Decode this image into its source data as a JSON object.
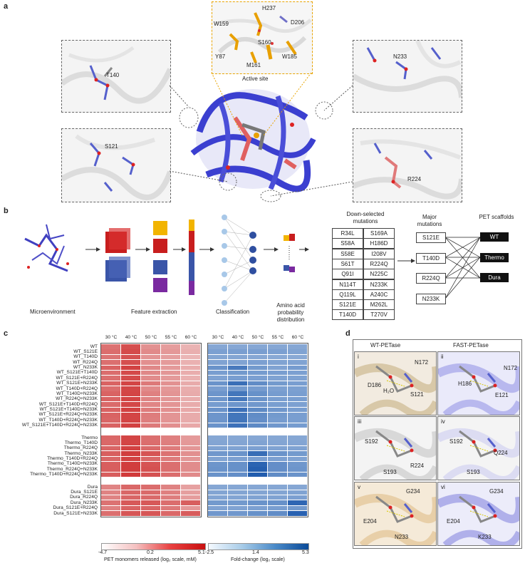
{
  "panel_labels": {
    "a": "a",
    "b": "b",
    "c": "c",
    "d": "d"
  },
  "panel_a": {
    "active_site_caption": "Active site",
    "active_site_residues": [
      "H237",
      "D206",
      "W159",
      "S160",
      "Y87",
      "W185",
      "M161"
    ],
    "inset_labels": {
      "t140": "T140",
      "s121": "S121",
      "n233": "N233",
      "r224": "R224"
    }
  },
  "panel_b": {
    "steps": [
      "Microenvironment",
      "Feature extraction",
      "Classification",
      "Amino acid probability distribution"
    ],
    "down_selected_title": "Down-selected mutations",
    "mutations_col1": [
      "R34L",
      "S58A",
      "S58E",
      "S61T",
      "Q91I",
      "N114T",
      "Q119L",
      "S121E",
      "T140D"
    ],
    "mutations_col2": [
      "S169A",
      "H186D",
      "I208V",
      "R224Q",
      "N225C",
      "N233K",
      "A240C",
      "M262L",
      "T270V"
    ],
    "major_title": "Major mutations",
    "major_mutations": [
      "S121E",
      "T140D",
      "R224Q",
      "N233K"
    ],
    "scaffold_title": "PET scaffolds",
    "scaffolds": [
      "WT",
      "Thermo",
      "Dura"
    ]
  },
  "panel_c": {
    "temperatures": [
      "30 °C",
      "40 °C",
      "50 °C",
      "55 °C",
      "60 °C"
    ],
    "groups": [
      {
        "name": "WT group",
        "rows": [
          "WT",
          "WT_S121E",
          "WT_T140D",
          "WT_R224Q",
          "WT_N233K",
          "WT_S121E+T140D",
          "WT_S121E+R224Q",
          "WT_S121E+N233K",
          "WT_T140D+R224Q",
          "WT_T140D+N233K",
          "WT_R224Q+N233K",
          "WT_S121E+T140D+R224Q",
          "WT_S121E+T140D+N233K",
          "WT_S121E+R224Q+N233K",
          "WT_T140D+R224Q+N233K",
          "WT_S121E+T140D+R224Q+N233K"
        ]
      },
      {
        "name": "Thermo group",
        "rows": [
          "Thermo",
          "Thermo_T140D",
          "Thermo_R224Q",
          "Thermo_N233K",
          "Thermo_T140D+R224Q",
          "Thermo_T140D+N233K",
          "Thermo_R224Q+N233K",
          "Thermo_T140D+R224Q+N233K"
        ]
      },
      {
        "name": "Dura group",
        "rows": [
          "Dura",
          "Dura_S121E",
          "Dura_R224Q",
          "Dura_N233K",
          "Dura_S121E+R224Q",
          "Dura_S121E+N233K"
        ]
      }
    ],
    "red_scale": {
      "ticks": [
        "-4.7",
        "0.2",
        "5.1"
      ],
      "label": "PET monomers released (log₂ scale, mM)",
      "min": -4.7,
      "max": 5.1
    },
    "blue_scale": {
      "ticks": [
        "-2.5",
        "1.4",
        "5.3"
      ],
      "label": "Fold-change (log₂ scale)",
      "min": -2.5,
      "max": 5.3
    },
    "red_values": [
      [
        2.2,
        3.6,
        0.9,
        0.4,
        -0.6
      ],
      [
        2.4,
        3.8,
        1.2,
        0.6,
        -0.4
      ],
      [
        2.1,
        3.5,
        0.8,
        0.3,
        -0.7
      ],
      [
        2.3,
        3.6,
        1.0,
        0.5,
        -0.5
      ],
      [
        2.8,
        4.1,
        1.3,
        0.5,
        -0.3
      ],
      [
        2.4,
        3.8,
        1.3,
        0.7,
        -0.3
      ],
      [
        2.3,
        3.7,
        1.1,
        0.5,
        -0.5
      ],
      [
        2.8,
        4.0,
        1.9,
        0.9,
        -0.2
      ],
      [
        2.4,
        3.9,
        1.2,
        0.6,
        -0.3
      ],
      [
        2.8,
        4.0,
        1.6,
        0.8,
        -0.2
      ],
      [
        2.8,
        4.0,
        1.5,
        0.7,
        -0.3
      ],
      [
        2.5,
        3.9,
        1.4,
        0.8,
        -0.2
      ],
      [
        2.8,
        4.1,
        1.8,
        1.0,
        -0.1
      ],
      [
        2.8,
        4.0,
        1.8,
        0.8,
        -0.2
      ],
      [
        2.7,
        4.0,
        1.7,
        0.8,
        -0.2
      ],
      [
        2.8,
        4.1,
        1.9,
        1.0,
        -0.1
      ],
      [
        2.6,
        4.0,
        2.3,
        1.6,
        0.5
      ],
      [
        2.6,
        4.0,
        2.4,
        1.7,
        0.6
      ],
      [
        2.7,
        4.1,
        2.5,
        1.8,
        0.7
      ],
      [
        3.0,
        4.3,
        3.4,
        2.2,
        1.0
      ],
      [
        2.7,
        4.1,
        2.6,
        1.8,
        0.7
      ],
      [
        3.0,
        4.3,
        3.4,
        2.3,
        1.1
      ],
      [
        3.0,
        4.3,
        3.5,
        2.3,
        1.1
      ],
      [
        3.0,
        4.4,
        3.5,
        2.4,
        1.2
      ],
      [
        1.4,
        2.6,
        2.4,
        1.5,
        0.2
      ],
      [
        1.5,
        2.7,
        2.5,
        1.6,
        0.3
      ],
      [
        1.5,
        2.7,
        2.5,
        1.7,
        0.4
      ],
      [
        2.2,
        3.2,
        3.2,
        2.4,
        3.0
      ],
      [
        1.6,
        2.8,
        2.7,
        1.9,
        0.6
      ],
      [
        2.3,
        3.3,
        3.3,
        2.6,
        3.1
      ]
    ],
    "blue_values": [
      [
        1.2,
        1.2,
        1.2,
        1.2,
        1.2
      ],
      [
        1.5,
        1.6,
        1.6,
        1.5,
        1.4
      ],
      [
        1.3,
        1.3,
        1.2,
        1.1,
        1.1
      ],
      [
        1.4,
        1.4,
        1.5,
        1.4,
        1.4
      ],
      [
        2.1,
        3.2,
        1.8,
        1.4,
        1.7
      ],
      [
        1.6,
        1.8,
        1.7,
        1.6,
        1.5
      ],
      [
        1.4,
        1.6,
        1.5,
        1.4,
        1.4
      ],
      [
        2.1,
        3.7,
        2.4,
        1.8,
        1.6
      ],
      [
        1.6,
        1.8,
        1.7,
        1.5,
        1.5
      ],
      [
        2.0,
        3.4,
        2.2,
        1.7,
        1.6
      ],
      [
        2.0,
        3.3,
        2.1,
        1.6,
        1.6
      ],
      [
        1.7,
        2.0,
        1.9,
        1.6,
        1.5
      ],
      [
        2.1,
        3.6,
        2.5,
        1.9,
        1.6
      ],
      [
        2.0,
        3.4,
        2.4,
        1.8,
        1.6
      ],
      [
        2.0,
        3.4,
        2.3,
        1.7,
        1.6
      ],
      [
        2.1,
        3.6,
        2.5,
        1.9,
        1.7
      ],
      [
        1.2,
        1.2,
        1.2,
        1.2,
        1.2
      ],
      [
        1.3,
        1.3,
        1.4,
        1.3,
        1.3
      ],
      [
        1.4,
        1.4,
        1.5,
        1.4,
        1.4
      ],
      [
        1.9,
        2.1,
        3.8,
        2.1,
        1.8
      ],
      [
        1.4,
        1.5,
        1.6,
        1.5,
        1.4
      ],
      [
        2.0,
        2.2,
        4.2,
        2.3,
        1.9
      ],
      [
        2.1,
        2.2,
        4.4,
        2.3,
        2.0
      ],
      [
        2.1,
        2.3,
        4.5,
        2.4,
        2.1
      ],
      [
        1.2,
        1.2,
        1.2,
        1.2,
        1.2
      ],
      [
        1.3,
        1.3,
        1.3,
        1.3,
        1.4
      ],
      [
        1.3,
        1.3,
        1.4,
        1.4,
        1.5
      ],
      [
        1.8,
        1.8,
        2.1,
        2.2,
        4.1
      ],
      [
        1.4,
        1.4,
        1.5,
        1.6,
        1.8
      ],
      [
        1.9,
        1.9,
        2.2,
        2.4,
        4.3
      ]
    ]
  },
  "panel_d": {
    "col_titles": [
      "WT-PETase",
      "FAST-PETase"
    ],
    "roman": [
      "i",
      "ii",
      "iii",
      "iv",
      "v",
      "vi"
    ],
    "labels": {
      "i": [
        "D186",
        "N172",
        "H₂O",
        "S121"
      ],
      "ii": [
        "H186",
        "N172",
        "E121"
      ],
      "iii": [
        "S192",
        "S193",
        "R224"
      ],
      "iv": [
        "S192",
        "Q224",
        "S193"
      ],
      "v": [
        "G234",
        "E204",
        "N233"
      ],
      "vi": [
        "G234",
        "E204",
        "K233"
      ]
    }
  }
}
